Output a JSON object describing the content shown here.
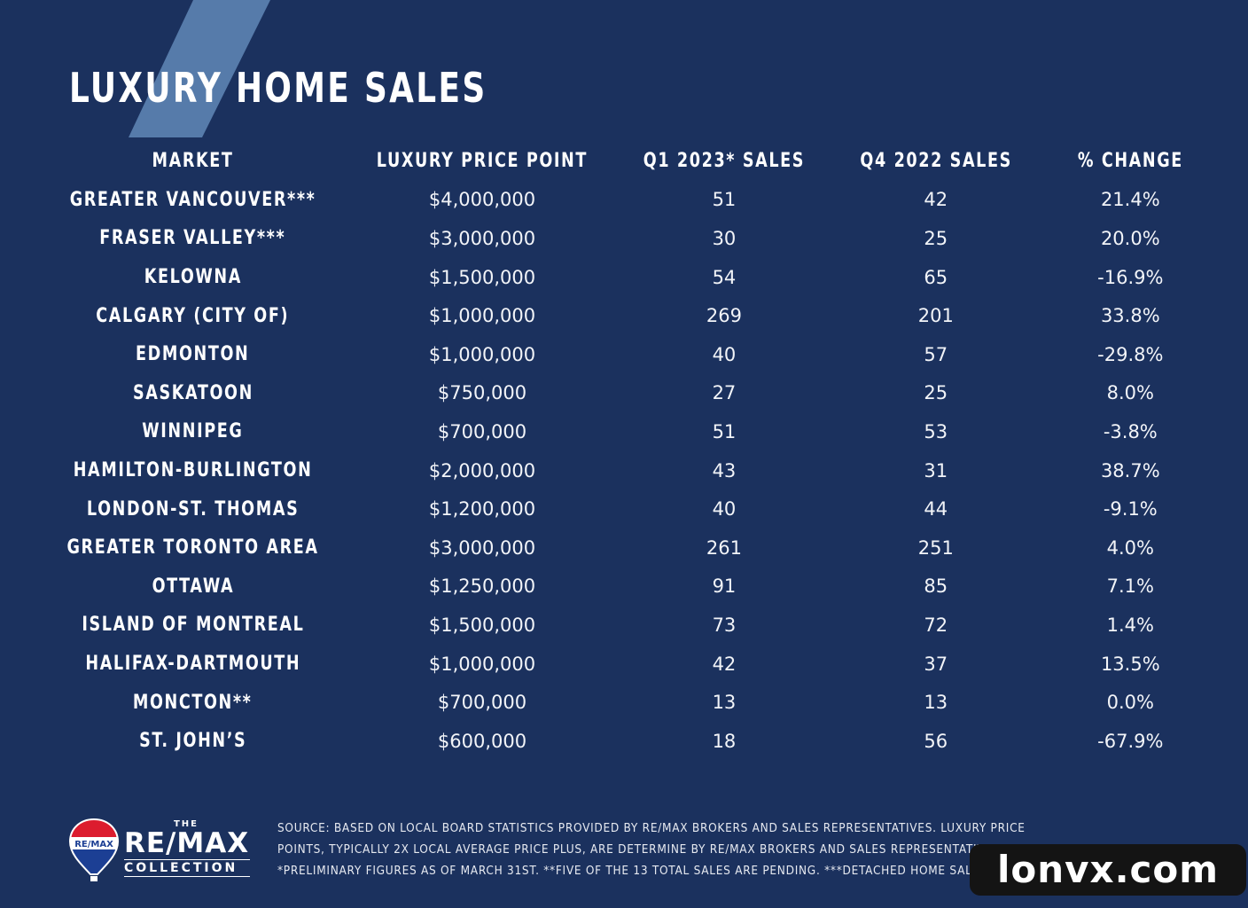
{
  "title": "LUXURY HOME SALES",
  "colors": {
    "background": "#1b315e",
    "stripe": "#5a7fae",
    "text": "#ffffff"
  },
  "chart_data": {
    "type": "table",
    "title": "LUXURY HOME SALES",
    "columns": [
      "MARKET",
      "LUXURY PRICE POINT",
      "Q1 2023* SALES",
      "Q4 2022 SALES",
      "% CHANGE"
    ],
    "rows": [
      [
        "GREATER VANCOUVER***",
        "$4,000,000",
        "51",
        "42",
        "21.4%"
      ],
      [
        "FRASER VALLEY***",
        "$3,000,000",
        "30",
        "25",
        "20.0%"
      ],
      [
        "KELOWNA",
        "$1,500,000",
        "54",
        "65",
        "-16.9%"
      ],
      [
        "CALGARY (CITY OF)",
        "$1,000,000",
        "269",
        "201",
        "33.8%"
      ],
      [
        "EDMONTON",
        "$1,000,000",
        "40",
        "57",
        "-29.8%"
      ],
      [
        "SASKATOON",
        "$750,000",
        "27",
        "25",
        "8.0%"
      ],
      [
        "WINNIPEG",
        "$700,000",
        "51",
        "53",
        "-3.8%"
      ],
      [
        "HAMILTON-BURLINGTON",
        "$2,000,000",
        "43",
        "31",
        "38.7%"
      ],
      [
        "LONDON-ST. THOMAS",
        "$1,200,000",
        "40",
        "44",
        "-9.1%"
      ],
      [
        "GREATER TORONTO AREA",
        "$3,000,000",
        "261",
        "251",
        "4.0%"
      ],
      [
        "OTTAWA",
        "$1,250,000",
        "91",
        "85",
        "7.1%"
      ],
      [
        "ISLAND OF MONTREAL",
        "$1,500,000",
        "73",
        "72",
        "1.4%"
      ],
      [
        "HALIFAX-DARTMOUTH",
        "$1,000,000",
        "42",
        "37",
        "13.5%"
      ],
      [
        "MONCTON**",
        "$700,000",
        "13",
        "13",
        "0.0%"
      ],
      [
        "ST. JOHN’S",
        "$600,000",
        "18",
        "56",
        "-67.9%"
      ]
    ]
  },
  "logo": {
    "the": "THE",
    "brand": "RE/MAX",
    "collection": "COLLECTION",
    "balloon_text": "RE/MAX"
  },
  "source": "SOURCE: BASED ON LOCAL BOARD STATISTICS PROVIDED BY RE/MAX BROKERS AND SALES REPRESENTATIVES. LUXURY PRICE POINTS, TYPICALLY 2X LOCAL AVERAGE PRICE PLUS, ARE DETERMINE BY RE/MAX BROKERS AND SALES REPRESENTATIVES *PRELIMINARY FIGURES AS OF MARCH 31ST. **FIVE OF THE 13 TOTAL SALES ARE PENDING. ***DETACHED HOME SALES ONLY.",
  "watermark": "lonvx.com"
}
